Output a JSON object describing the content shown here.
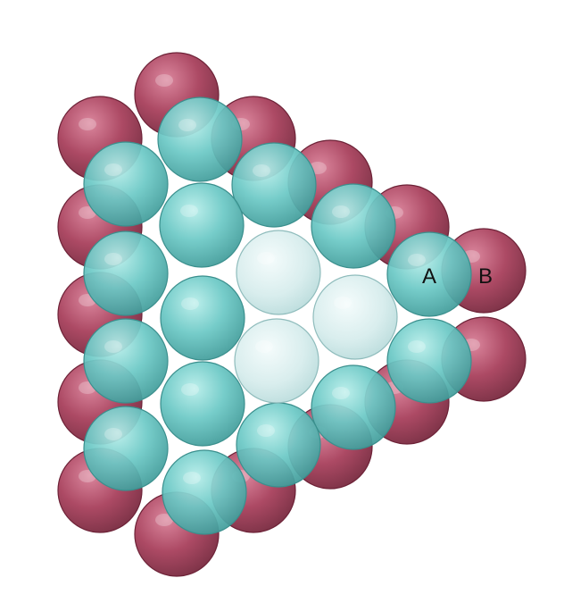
{
  "diagram": {
    "labels": {
      "a": "A",
      "b": "B"
    },
    "colors": {
      "layer_b": "#b04a66",
      "layer_a": "#6cc9c6",
      "ghost": "#c8e6e6",
      "background": "#ffffff"
    }
  }
}
